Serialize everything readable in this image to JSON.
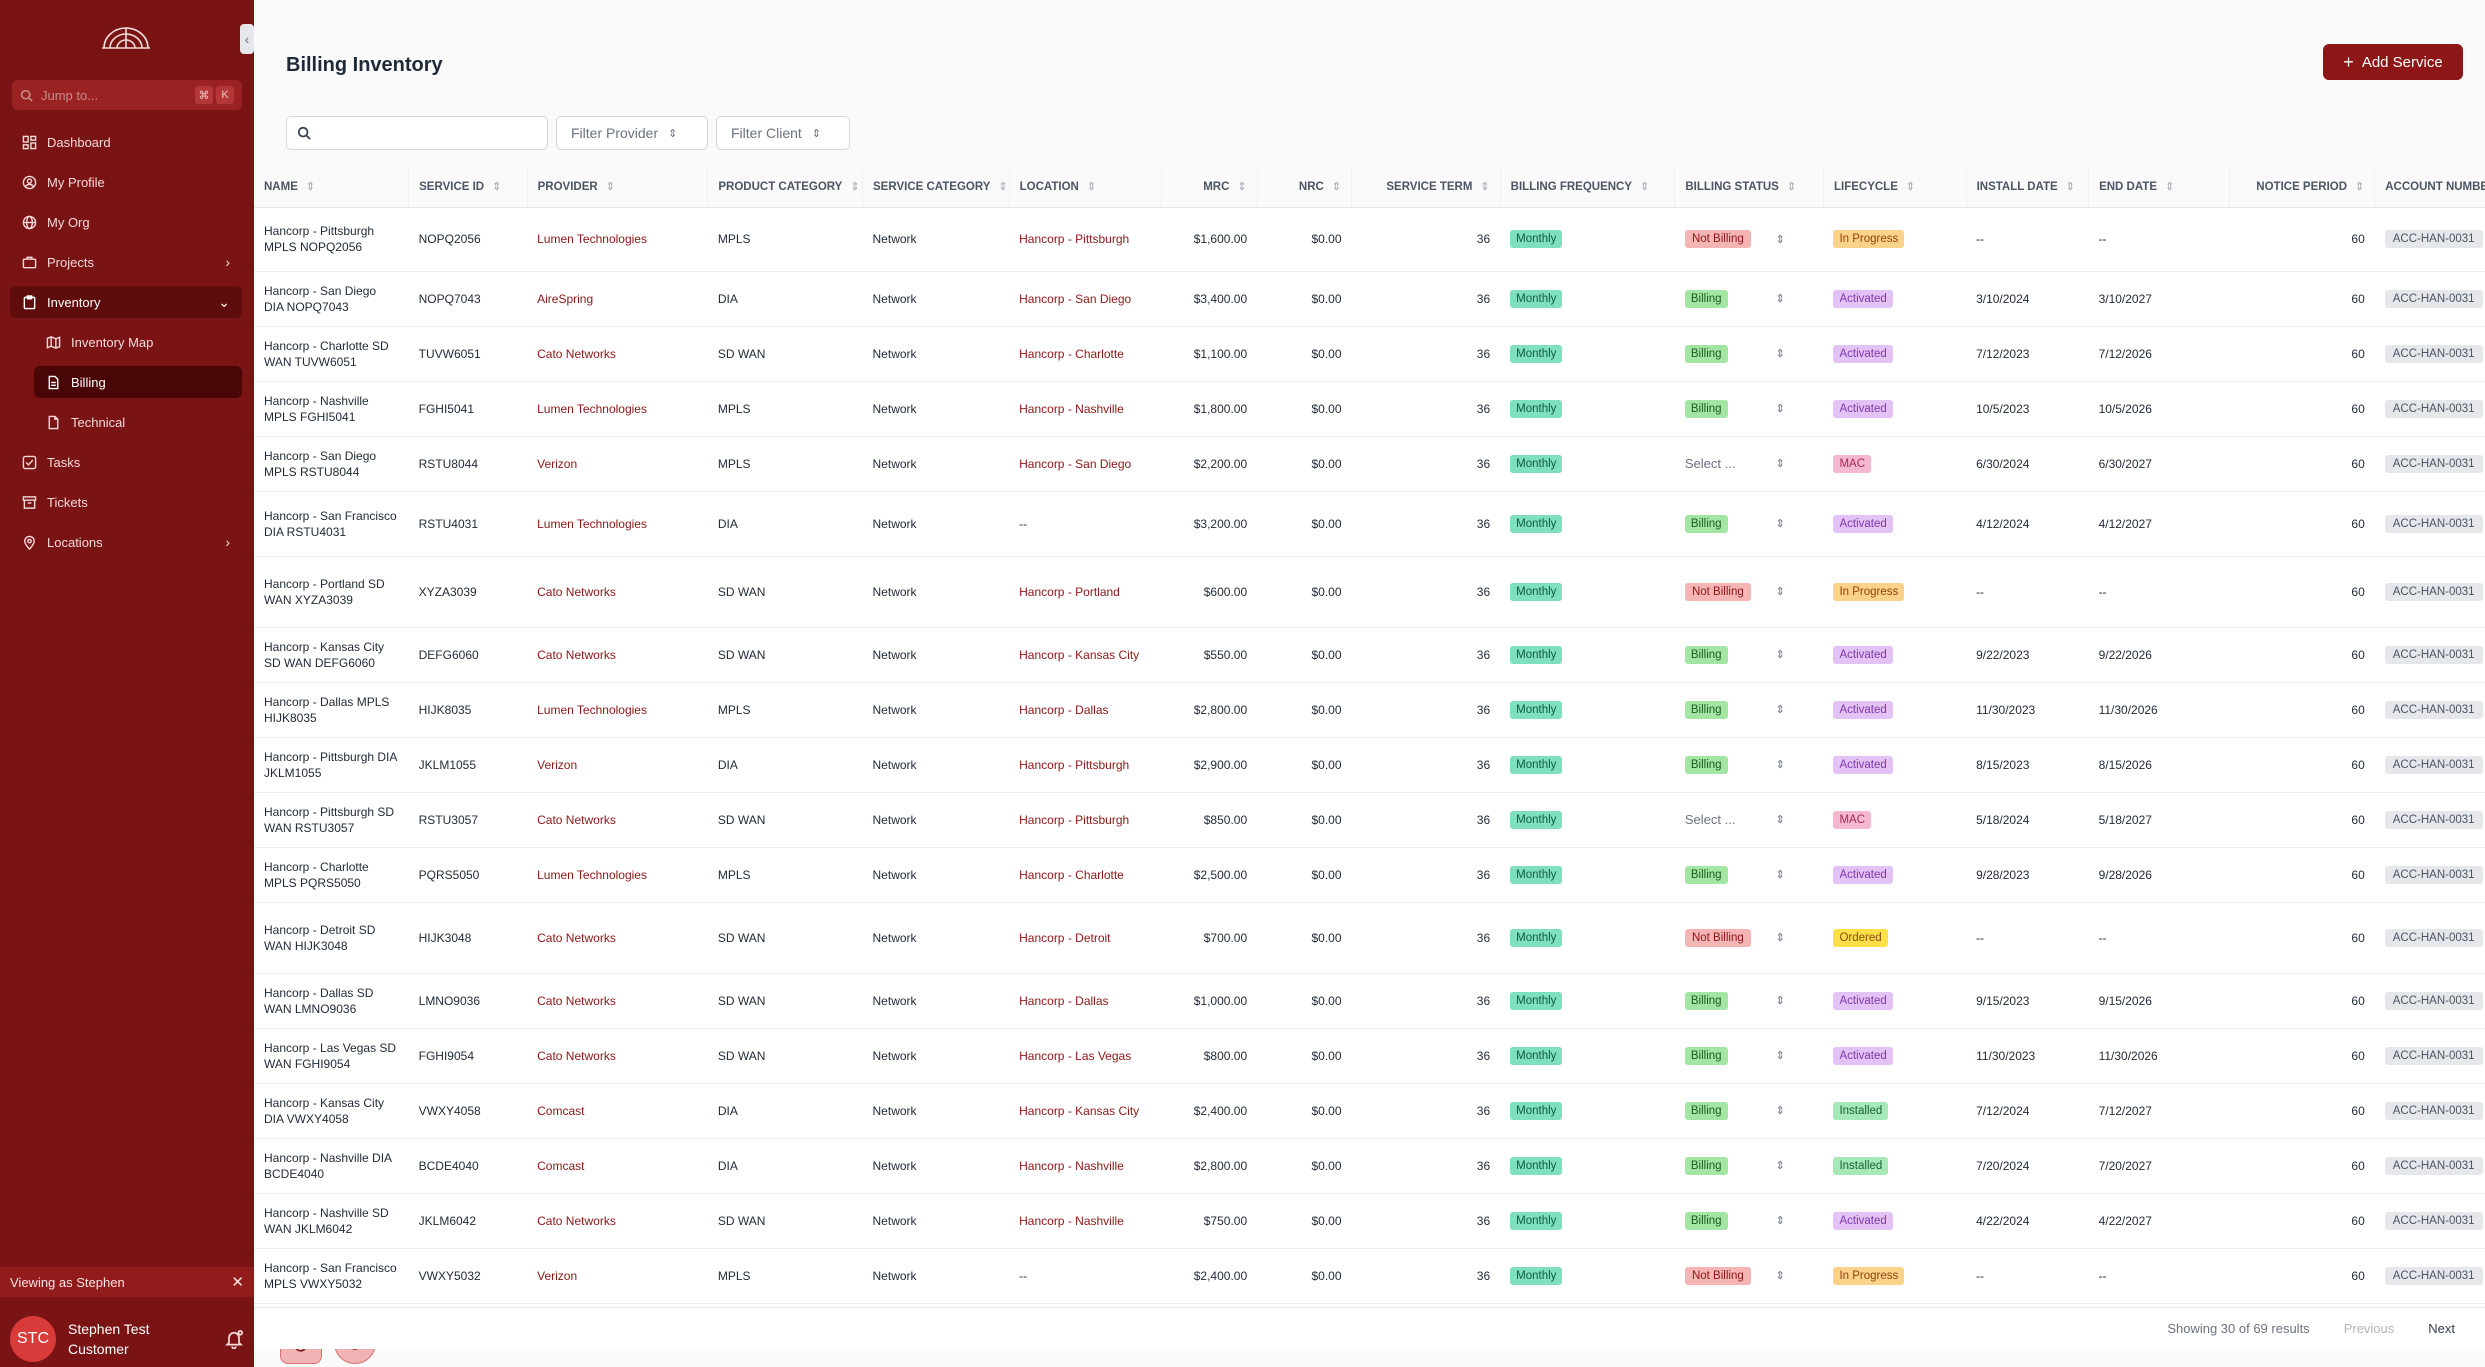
{
  "sidebar": {
    "jump_placeholder": "Jump to...",
    "jump_kbd": [
      "⌘",
      "K"
    ],
    "nav": {
      "dashboard": "Dashboard",
      "profile": "My Profile",
      "org": "My Org",
      "projects": "Projects",
      "inventory": "Inventory",
      "inventory_map": "Inventory Map",
      "billing": "Billing",
      "technical": "Technical",
      "tasks": "Tasks",
      "tickets": "Tickets",
      "locations": "Locations"
    },
    "viewing_as": "Viewing as Stephen",
    "user": {
      "initials": "STC",
      "name": "Stephen Test Customer"
    }
  },
  "page": {
    "title": "Billing Inventory",
    "add_button": "Add Service",
    "search_placeholder": "",
    "filter_provider": "Filter Provider",
    "filter_client": "Filter Client"
  },
  "table": {
    "columns": [
      "NAME",
      "SERVICE ID",
      "PROVIDER",
      "PRODUCT CATEGORY",
      "SERVICE CATEGORY",
      "LOCATION",
      "MRC",
      "NRC",
      "SERVICE TERM",
      "BILLING FREQUENCY",
      "BILLING STATUS",
      "LIFECYCLE",
      "INSTALL DATE",
      "END DATE",
      "NOTICE PERIOD",
      "ACCOUNT NUMBER"
    ],
    "rows": [
      {
        "name": "Hancorp - Pittsburgh MPLS NOPQ2056",
        "sid": "NOPQ2056",
        "provider": "Lumen Technologies",
        "product": "MPLS",
        "service": "Network",
        "location": "Hancorp - Pittsburgh",
        "mrc": "$1,600.00",
        "nrc": "$0.00",
        "term": "36",
        "freq": "Monthly",
        "bstatus": "Not Billing",
        "lifecycle": "In Progress",
        "install": "--",
        "end": "--",
        "notice": "60",
        "acct": "ACC-HAN-0031"
      },
      {
        "name": "Hancorp - San Diego DIA NOPQ7043",
        "sid": "NOPQ7043",
        "provider": "AireSpring",
        "product": "DIA",
        "service": "Network",
        "location": "Hancorp - San Diego",
        "mrc": "$3,400.00",
        "nrc": "$0.00",
        "term": "36",
        "freq": "Monthly",
        "bstatus": "Billing",
        "lifecycle": "Activated",
        "install": "3/10/2024",
        "end": "3/10/2027",
        "notice": "60",
        "acct": "ACC-HAN-0031"
      },
      {
        "name": "Hancorp - Charlotte SD WAN TUVW6051",
        "sid": "TUVW6051",
        "provider": "Cato Networks",
        "product": "SD WAN",
        "service": "Network",
        "location": "Hancorp - Charlotte",
        "mrc": "$1,100.00",
        "nrc": "$0.00",
        "term": "36",
        "freq": "Monthly",
        "bstatus": "Billing",
        "lifecycle": "Activated",
        "install": "7/12/2023",
        "end": "7/12/2026",
        "notice": "60",
        "acct": "ACC-HAN-0031"
      },
      {
        "name": "Hancorp - Nashville MPLS FGHI5041",
        "sid": "FGHI5041",
        "provider": "Lumen Technologies",
        "product": "MPLS",
        "service": "Network",
        "location": "Hancorp - Nashville",
        "mrc": "$1,800.00",
        "nrc": "$0.00",
        "term": "36",
        "freq": "Monthly",
        "bstatus": "Billing",
        "lifecycle": "Activated",
        "install": "10/5/2023",
        "end": "10/5/2026",
        "notice": "60",
        "acct": "ACC-HAN-0031"
      },
      {
        "name": "Hancorp - San Diego MPLS RSTU8044",
        "sid": "RSTU8044",
        "provider": "Verizon",
        "product": "MPLS",
        "service": "Network",
        "location": "Hancorp - San Diego",
        "mrc": "$2,200.00",
        "nrc": "$0.00",
        "term": "36",
        "freq": "Monthly",
        "bstatus": "Select ...",
        "lifecycle": "MAC",
        "install": "6/30/2024",
        "end": "6/30/2027",
        "notice": "60",
        "acct": "ACC-HAN-0031"
      },
      {
        "name": "Hancorp - San Francisco DIA RSTU4031",
        "sid": "RSTU4031",
        "provider": "Lumen Technologies",
        "product": "DIA",
        "service": "Network",
        "location": "--",
        "mrc": "$3,200.00",
        "nrc": "$0.00",
        "term": "36",
        "freq": "Monthly",
        "bstatus": "Billing",
        "lifecycle": "Activated",
        "install": "4/12/2024",
        "end": "4/12/2027",
        "notice": "60",
        "acct": "ACC-HAN-0031"
      },
      {
        "name": "Hancorp - Portland SD WAN XYZA3039",
        "sid": "XYZA3039",
        "provider": "Cato Networks",
        "product": "SD WAN",
        "service": "Network",
        "location": "Hancorp - Portland",
        "mrc": "$600.00",
        "nrc": "$0.00",
        "term": "36",
        "freq": "Monthly",
        "bstatus": "Not Billing",
        "lifecycle": "In Progress",
        "install": "--",
        "end": "--",
        "notice": "60",
        "acct": "ACC-HAN-0031"
      },
      {
        "name": "Hancorp - Kansas City SD WAN DEFG6060",
        "sid": "DEFG6060",
        "provider": "Cato Networks",
        "product": "SD WAN",
        "service": "Network",
        "location": "Hancorp - Kansas City",
        "mrc": "$550.00",
        "nrc": "$0.00",
        "term": "36",
        "freq": "Monthly",
        "bstatus": "Billing",
        "lifecycle": "Activated",
        "install": "9/22/2023",
        "end": "9/22/2026",
        "notice": "60",
        "acct": "ACC-HAN-0031"
      },
      {
        "name": "Hancorp - Dallas MPLS HIJK8035",
        "sid": "HIJK8035",
        "provider": "Lumen Technologies",
        "product": "MPLS",
        "service": "Network",
        "location": "Hancorp - Dallas",
        "mrc": "$2,800.00",
        "nrc": "$0.00",
        "term": "36",
        "freq": "Monthly",
        "bstatus": "Billing",
        "lifecycle": "Activated",
        "install": "11/30/2023",
        "end": "11/30/2026",
        "notice": "60",
        "acct": "ACC-HAN-0031"
      },
      {
        "name": "Hancorp - Pittsburgh DIA JKLM1055",
        "sid": "JKLM1055",
        "provider": "Verizon",
        "product": "DIA",
        "service": "Network",
        "location": "Hancorp - Pittsburgh",
        "mrc": "$2,900.00",
        "nrc": "$0.00",
        "term": "36",
        "freq": "Monthly",
        "bstatus": "Billing",
        "lifecycle": "Activated",
        "install": "8/15/2023",
        "end": "8/15/2026",
        "notice": "60",
        "acct": "ACC-HAN-0031"
      },
      {
        "name": "Hancorp - Pittsburgh SD WAN RSTU3057",
        "sid": "RSTU3057",
        "provider": "Cato Networks",
        "product": "SD WAN",
        "service": "Network",
        "location": "Hancorp - Pittsburgh",
        "mrc": "$850.00",
        "nrc": "$0.00",
        "term": "36",
        "freq": "Monthly",
        "bstatus": "Select ...",
        "lifecycle": "MAC",
        "install": "5/18/2024",
        "end": "5/18/2027",
        "notice": "60",
        "acct": "ACC-HAN-0031"
      },
      {
        "name": "Hancorp - Charlotte MPLS PQRS5050",
        "sid": "PQRS5050",
        "provider": "Lumen Technologies",
        "product": "MPLS",
        "service": "Network",
        "location": "Hancorp - Charlotte",
        "mrc": "$2,500.00",
        "nrc": "$0.00",
        "term": "36",
        "freq": "Monthly",
        "bstatus": "Billing",
        "lifecycle": "Activated",
        "install": "9/28/2023",
        "end": "9/28/2026",
        "notice": "60",
        "acct": "ACC-HAN-0031"
      },
      {
        "name": "Hancorp - Detroit SD WAN HIJK3048",
        "sid": "HIJK3048",
        "provider": "Cato Networks",
        "product": "SD WAN",
        "service": "Network",
        "location": "Hancorp - Detroit",
        "mrc": "$700.00",
        "nrc": "$0.00",
        "term": "36",
        "freq": "Monthly",
        "bstatus": "Not Billing",
        "lifecycle": "Ordered",
        "install": "--",
        "end": "--",
        "notice": "60",
        "acct": "ACC-HAN-0031"
      },
      {
        "name": "Hancorp - Dallas SD WAN LMNO9036",
        "sid": "LMNO9036",
        "provider": "Cato Networks",
        "product": "SD WAN",
        "service": "Network",
        "location": "Hancorp - Dallas",
        "mrc": "$1,000.00",
        "nrc": "$0.00",
        "term": "36",
        "freq": "Monthly",
        "bstatus": "Billing",
        "lifecycle": "Activated",
        "install": "9/15/2023",
        "end": "9/15/2026",
        "notice": "60",
        "acct": "ACC-HAN-0031"
      },
      {
        "name": "Hancorp - Las Vegas SD WAN FGHI9054",
        "sid": "FGHI9054",
        "provider": "Cato Networks",
        "product": "SD WAN",
        "service": "Network",
        "location": "Hancorp - Las Vegas",
        "mrc": "$800.00",
        "nrc": "$0.00",
        "term": "36",
        "freq": "Monthly",
        "bstatus": "Billing",
        "lifecycle": "Activated",
        "install": "11/30/2023",
        "end": "11/30/2026",
        "notice": "60",
        "acct": "ACC-HAN-0031"
      },
      {
        "name": "Hancorp - Kansas City DIA VWXY4058",
        "sid": "VWXY4058",
        "provider": "Comcast",
        "product": "DIA",
        "service": "Network",
        "location": "Hancorp - Kansas City",
        "mrc": "$2,400.00",
        "nrc": "$0.00",
        "term": "36",
        "freq": "Monthly",
        "bstatus": "Billing",
        "lifecycle": "Installed",
        "install": "7/12/2024",
        "end": "7/12/2027",
        "notice": "60",
        "acct": "ACC-HAN-0031"
      },
      {
        "name": "Hancorp - Nashville DIA BCDE4040",
        "sid": "BCDE4040",
        "provider": "Comcast",
        "product": "DIA",
        "service": "Network",
        "location": "Hancorp - Nashville",
        "mrc": "$2,800.00",
        "nrc": "$0.00",
        "term": "36",
        "freq": "Monthly",
        "bstatus": "Billing",
        "lifecycle": "Installed",
        "install": "7/20/2024",
        "end": "7/20/2027",
        "notice": "60",
        "acct": "ACC-HAN-0031"
      },
      {
        "name": "Hancorp - Nashville SD WAN JKLM6042",
        "sid": "JKLM6042",
        "provider": "Cato Networks",
        "product": "SD WAN",
        "service": "Network",
        "location": "Hancorp - Nashville",
        "mrc": "$750.00",
        "nrc": "$0.00",
        "term": "36",
        "freq": "Monthly",
        "bstatus": "Billing",
        "lifecycle": "Activated",
        "install": "4/22/2024",
        "end": "4/22/2027",
        "notice": "60",
        "acct": "ACC-HAN-0031"
      },
      {
        "name": "Hancorp - San Francisco MPLS VWXY5032",
        "sid": "VWXY5032",
        "provider": "Verizon",
        "product": "MPLS",
        "service": "Network",
        "location": "--",
        "mrc": "$2,400.00",
        "nrc": "$0.00",
        "term": "36",
        "freq": "Monthly",
        "bstatus": "Not Billing",
        "lifecycle": "In Progress",
        "install": "--",
        "end": "--",
        "notice": "60",
        "acct": "ACC-HAN-0031"
      }
    ]
  },
  "pagination": {
    "showing": "Showing 30 of 69 results",
    "previous": "Previous",
    "next": "Next"
  },
  "colors": {
    "sidebar": "#7a1414",
    "accent": "#8d1616",
    "active_nav": "#4a0606"
  }
}
